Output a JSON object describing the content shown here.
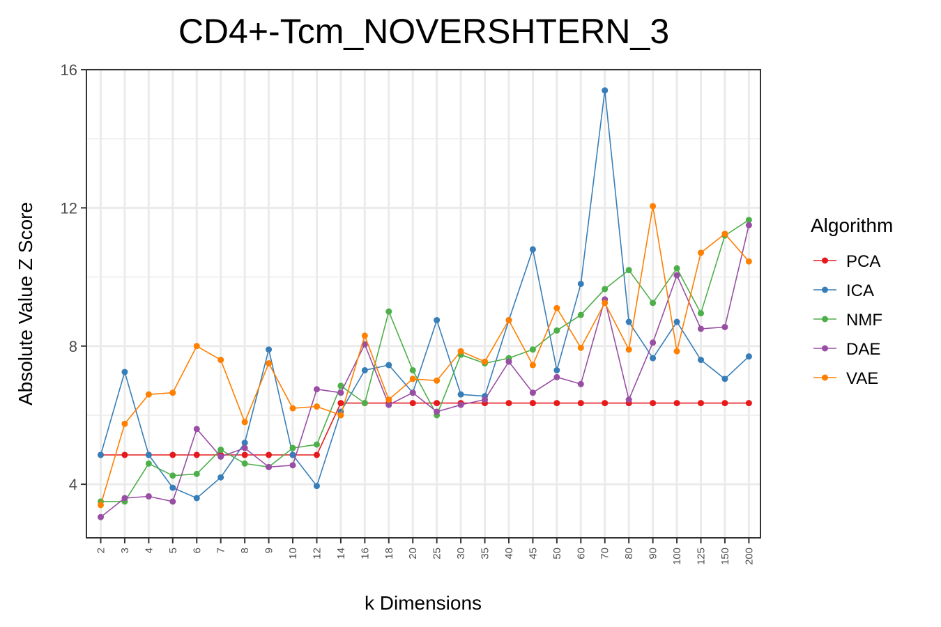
{
  "chart_data": {
    "type": "line",
    "title": "CD4+-Tcm_NOVERSHTERN_3",
    "xlabel": "k Dimensions",
    "ylabel": "Absolute Value Z Score",
    "categories": [
      "2",
      "3",
      "4",
      "5",
      "6",
      "7",
      "8",
      "9",
      "10",
      "12",
      "14",
      "16",
      "18",
      "20",
      "25",
      "30",
      "35",
      "40",
      "45",
      "50",
      "60",
      "70",
      "80",
      "90",
      "100",
      "125",
      "150",
      "200"
    ],
    "ylim": [
      2.45,
      16
    ],
    "yticks": [
      4,
      8,
      12,
      16
    ],
    "grid": true,
    "legend": {
      "title": "Algorithm",
      "position": "right"
    },
    "series": [
      {
        "name": "PCA",
        "color": "#E41A1C",
        "values": [
          4.85,
          4.85,
          4.85,
          4.85,
          4.85,
          4.85,
          4.85,
          4.85,
          4.85,
          4.85,
          6.35,
          6.35,
          6.35,
          6.35,
          6.35,
          6.35,
          6.35,
          6.35,
          6.35,
          6.35,
          6.35,
          6.35,
          6.35,
          6.35,
          6.35,
          6.35,
          6.35,
          6.35
        ]
      },
      {
        "name": "ICA",
        "color": "#377EB8",
        "values": [
          4.85,
          7.25,
          4.85,
          3.9,
          3.6,
          4.2,
          5.2,
          7.9,
          4.85,
          3.95,
          6.1,
          7.3,
          7.45,
          6.65,
          8.75,
          6.6,
          6.55,
          8.75,
          10.8,
          7.3,
          9.8,
          15.4,
          8.7,
          7.65,
          8.7,
          7.6,
          7.05,
          7.7
        ]
      },
      {
        "name": "NMF",
        "color": "#4DAF4A",
        "values": [
          3.5,
          3.5,
          4.6,
          4.25,
          4.3,
          5.0,
          4.6,
          4.5,
          5.05,
          5.15,
          6.85,
          6.35,
          9.0,
          7.3,
          6.0,
          7.75,
          7.5,
          7.65,
          7.9,
          8.45,
          8.9,
          9.65,
          10.2,
          9.25,
          10.25,
          8.95,
          11.2,
          11.65
        ]
      },
      {
        "name": "DAE",
        "color": "#984EA3",
        "values": [
          3.05,
          3.6,
          3.65,
          3.5,
          5.6,
          4.8,
          5.05,
          4.5,
          4.55,
          6.75,
          6.65,
          8.05,
          6.3,
          6.65,
          6.1,
          6.3,
          6.45,
          7.55,
          6.65,
          7.1,
          6.9,
          9.35,
          6.45,
          8.1,
          10.05,
          8.5,
          8.55,
          11.5
        ]
      },
      {
        "name": "VAE",
        "color": "#FF7F00",
        "values": [
          3.4,
          5.75,
          6.6,
          6.65,
          8.0,
          7.6,
          5.8,
          7.5,
          6.2,
          6.25,
          6.0,
          8.3,
          6.45,
          7.05,
          7.0,
          7.85,
          7.55,
          8.75,
          7.45,
          9.1,
          7.95,
          9.25,
          7.9,
          12.05,
          7.85,
          10.7,
          11.25,
          10.45
        ]
      }
    ]
  }
}
